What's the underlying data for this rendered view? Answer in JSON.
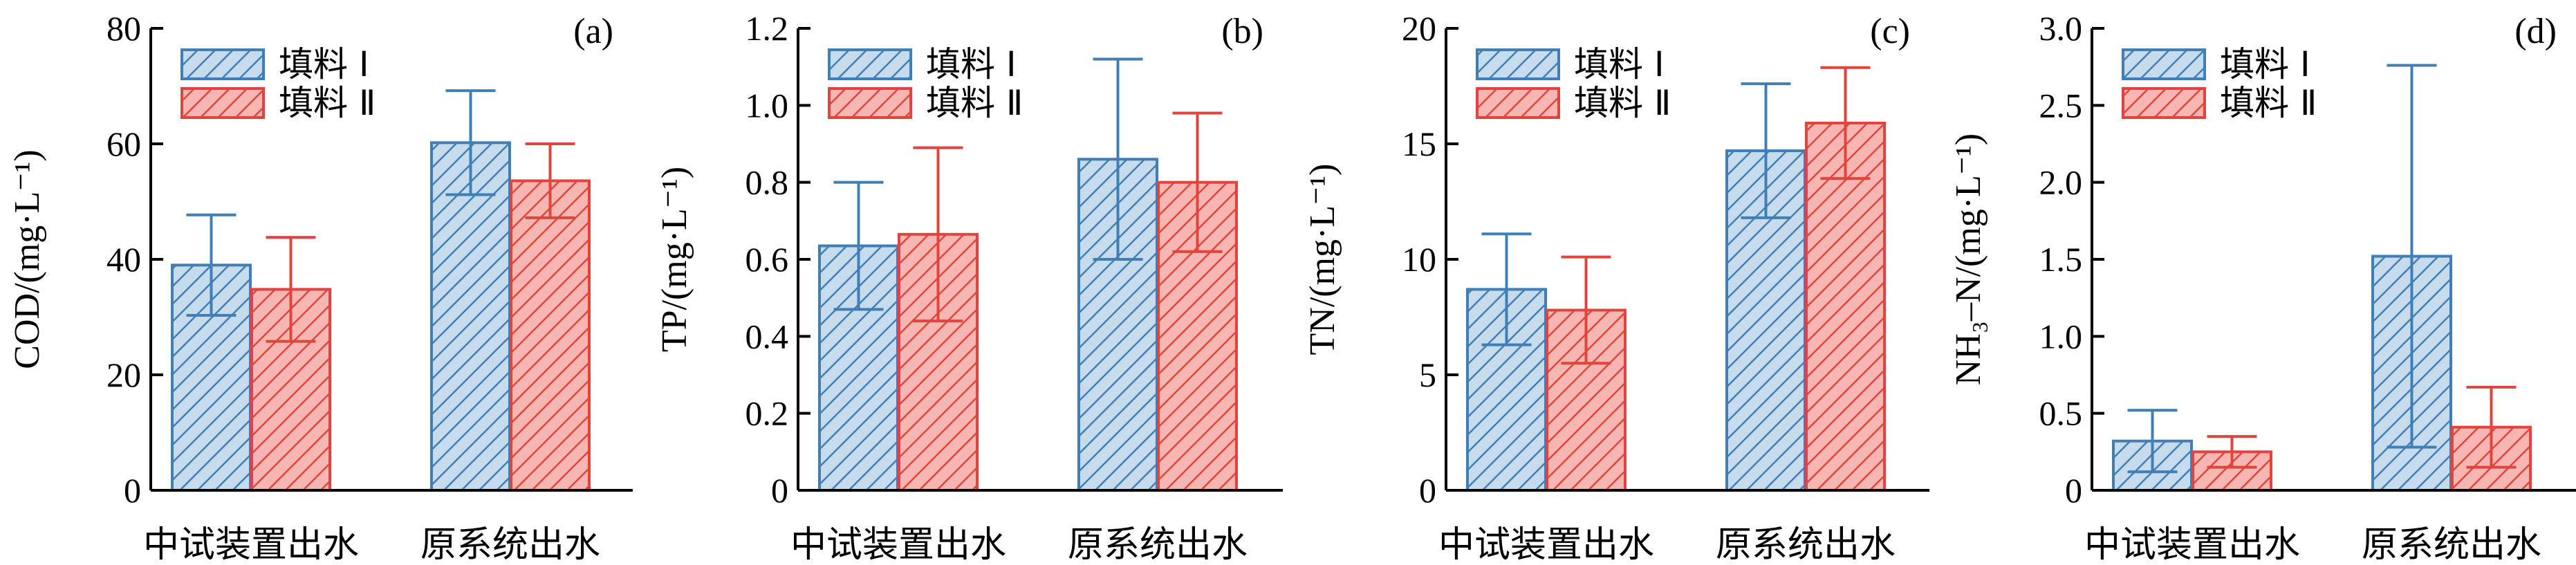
{
  "colors": {
    "series1_fill": "#c6dcec",
    "series1_stroke": "#3f7fb6",
    "series2_fill": "#f7b6b2",
    "series2_stroke": "#e0443d"
  },
  "chart_data": [
    {
      "type": "bar",
      "panel_label": "(a)",
      "ylabel": "COD/(mg·L⁻¹)",
      "ylim": [
        0,
        80
      ],
      "yticks": [
        0,
        20,
        40,
        60,
        80
      ],
      "ytick_labels": [
        "0",
        "20",
        "40",
        "60",
        "80"
      ],
      "categories": [
        "中试装置出水",
        "原系统出水"
      ],
      "series": [
        {
          "name": "填料 Ⅰ",
          "values": [
            39.0,
            60.2
          ],
          "errors": [
            8.7,
            9.0
          ]
        },
        {
          "name": "填料 Ⅱ",
          "values": [
            34.8,
            53.6
          ],
          "errors": [
            9.0,
            6.4
          ]
        }
      ]
    },
    {
      "type": "bar",
      "panel_label": "(b)",
      "ylabel": "TP/(mg·L⁻¹)",
      "ylim": [
        0,
        1.2
      ],
      "yticks": [
        0,
        0.2,
        0.4,
        0.6,
        0.8,
        1.0,
        1.2
      ],
      "ytick_labels": [
        "0",
        "0.2",
        "0.4",
        "0.6",
        "0.8",
        "1.0",
        "1.2"
      ],
      "categories": [
        "中试装置出水",
        "原系统出水"
      ],
      "series": [
        {
          "name": "填料 Ⅰ",
          "values": [
            0.635,
            0.86
          ],
          "errors": [
            0.165,
            0.26
          ]
        },
        {
          "name": "填料 Ⅱ",
          "values": [
            0.665,
            0.8
          ],
          "errors": [
            0.225,
            0.18
          ]
        }
      ]
    },
    {
      "type": "bar",
      "panel_label": "(c)",
      "ylabel": "TN/(mg·L⁻¹)",
      "ylim": [
        0,
        20
      ],
      "yticks": [
        0,
        5,
        10,
        15,
        20
      ],
      "ytick_labels": [
        "0",
        "5",
        "10",
        "15",
        "20"
      ],
      "categories": [
        "中试装置出水",
        "原系统出水"
      ],
      "series": [
        {
          "name": "填料 Ⅰ",
          "values": [
            8.7,
            14.7
          ],
          "errors": [
            2.4,
            2.9
          ]
        },
        {
          "name": "填料 Ⅱ",
          "values": [
            7.8,
            15.9
          ],
          "errors": [
            2.3,
            2.4
          ]
        }
      ]
    },
    {
      "type": "bar",
      "panel_label": "(d)",
      "ylabel": "NH₃–N/(mg·L⁻¹)",
      "ylim": [
        0,
        3.0
      ],
      "yticks": [
        0,
        0.5,
        1.0,
        1.5,
        2.0,
        2.5,
        3.0
      ],
      "ytick_labels": [
        "0",
        "0.5",
        "1.0",
        "1.5",
        "2.0",
        "2.5",
        "3.0"
      ],
      "categories": [
        "中试装置出水",
        "原系统出水"
      ],
      "series": [
        {
          "name": "填料 Ⅰ",
          "values": [
            0.32,
            1.52
          ],
          "errors": [
            0.2,
            1.24
          ]
        },
        {
          "name": "填料 Ⅱ",
          "values": [
            0.25,
            0.41
          ],
          "errors": [
            0.1,
            0.26
          ]
        }
      ]
    }
  ]
}
